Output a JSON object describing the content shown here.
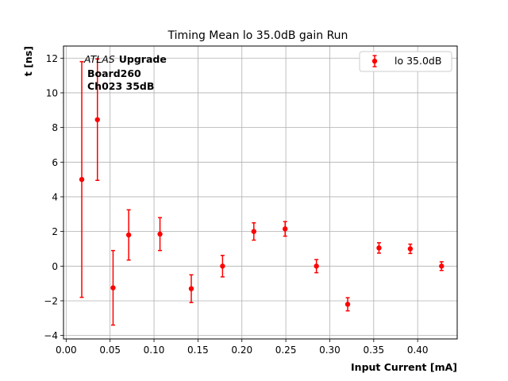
{
  "chart_data": {
    "type": "scatter",
    "title": "Timing Mean lo 35.0dB gain Run",
    "xlabel": "Input Current [mA]",
    "ylabel": "t [ns]",
    "xlim": [
      -0.003,
      0.445
    ],
    "ylim": [
      -4.2,
      12.7
    ],
    "xticks": [
      0.0,
      0.05,
      0.1,
      0.15,
      0.2,
      0.25,
      0.3,
      0.35,
      0.4
    ],
    "xtick_labels": [
      "0.00",
      "0.05",
      "0.10",
      "0.15",
      "0.20",
      "0.25",
      "0.30",
      "0.35",
      "0.40"
    ],
    "yticks": [
      -4,
      -2,
      0,
      2,
      4,
      6,
      8,
      10,
      12
    ],
    "ytick_labels": [
      "−4",
      "−2",
      "0",
      "2",
      "4",
      "6",
      "8",
      "10",
      "12"
    ],
    "grid": true,
    "legend_position": "top-right",
    "annotation": {
      "atlas": "ATLAS",
      "upgrade": "Upgrade",
      "board": "Board260",
      "channel": "Ch023 35dB"
    },
    "series": [
      {
        "name": "lo 35.0dB",
        "color": "#ff0000",
        "marker": "circle",
        "points": [
          {
            "x": 0.0178,
            "y": 5.0,
            "err": 6.8
          },
          {
            "x": 0.0356,
            "y": 8.45,
            "err": 3.5
          },
          {
            "x": 0.0534,
            "y": -1.25,
            "err": 2.15
          },
          {
            "x": 0.0712,
            "y": 1.8,
            "err": 1.45
          },
          {
            "x": 0.1068,
            "y": 1.85,
            "err": 0.95
          },
          {
            "x": 0.1424,
            "y": -1.3,
            "err": 0.8
          },
          {
            "x": 0.178,
            "y": 0.0,
            "err": 0.62
          },
          {
            "x": 0.2136,
            "y": 2.0,
            "err": 0.5
          },
          {
            "x": 0.2492,
            "y": 2.15,
            "err": 0.42
          },
          {
            "x": 0.2848,
            "y": 0.0,
            "err": 0.38
          },
          {
            "x": 0.3204,
            "y": -2.2,
            "err": 0.38
          },
          {
            "x": 0.356,
            "y": 1.05,
            "err": 0.3
          },
          {
            "x": 0.3916,
            "y": 1.0,
            "err": 0.27
          },
          {
            "x": 0.4272,
            "y": 0.0,
            "err": 0.25
          }
        ]
      }
    ]
  }
}
